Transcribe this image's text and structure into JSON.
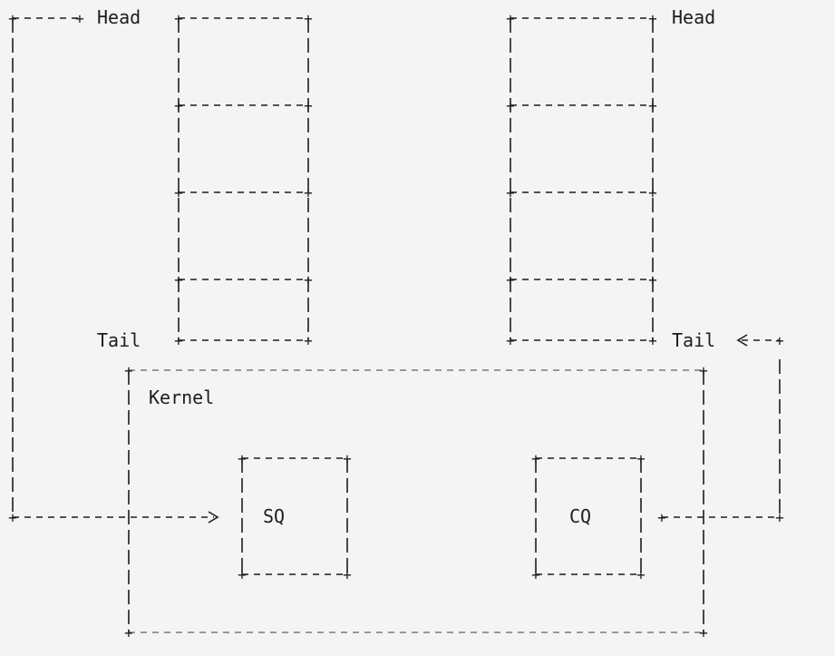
{
  "diagram": {
    "labels": {
      "sq_head": "Head",
      "sq_tail": "Tail",
      "cq_head": "Head",
      "cq_tail": "Tail",
      "kernel": "Kernel",
      "sq": "SQ",
      "cq": "CQ"
    },
    "sq_ring_slots": 4,
    "cq_ring_slots": 4,
    "colors": {
      "line": "#1d1d1d",
      "kernel_dash": "#7a7a7a",
      "background": "#f4f4f4"
    }
  }
}
